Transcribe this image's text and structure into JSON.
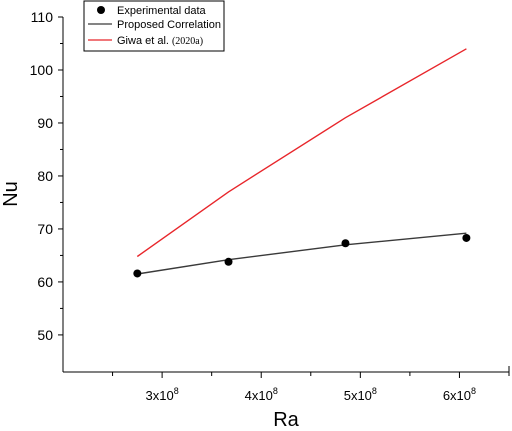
{
  "chart_data": {
    "type": "line",
    "xlabel": "Ra",
    "ylabel": "Nu",
    "xlim": [
      200000000,
      650000000
    ],
    "ylim": [
      43,
      110
    ],
    "x_ticks": [
      {
        "value": 300000000,
        "base": "3x10",
        "exp": "8"
      },
      {
        "value": 400000000,
        "base": "4x10",
        "exp": "8"
      },
      {
        "value": 500000000,
        "base": "5x10",
        "exp": "8"
      },
      {
        "value": 600000000,
        "base": "6x10",
        "exp": "8"
      }
    ],
    "y_ticks": [
      50,
      60,
      70,
      80,
      90,
      100,
      110
    ],
    "legend_position": "top-left",
    "series": [
      {
        "name": "Experimental data",
        "style": "markers",
        "color": "#000000",
        "x": [
          275000000,
          367000000,
          485000000,
          607000000
        ],
        "y": [
          61.6,
          63.8,
          67.3,
          68.3
        ]
      },
      {
        "name": "Proposed Correlation",
        "style": "line",
        "color": "#3a3a3a",
        "x": [
          275000000,
          367000000,
          485000000,
          607000000
        ],
        "y": [
          61.5,
          64.2,
          67.0,
          69.2
        ]
      },
      {
        "name": "Giwa et al.",
        "name_suffix": "(2020a)",
        "style": "line",
        "color": "#e8262b",
        "x": [
          275000000,
          367000000,
          485000000,
          607000000
        ],
        "y": [
          64.8,
          77.0,
          91.0,
          104.0
        ]
      }
    ]
  }
}
